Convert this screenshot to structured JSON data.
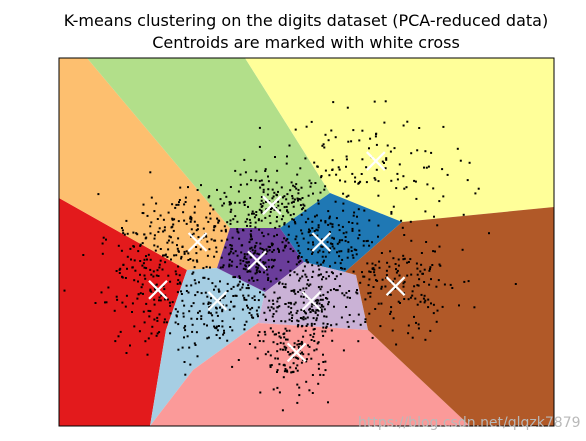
{
  "chart_data": {
    "type": "scatter",
    "title": "K-means clustering on the digits dataset (PCA-reduced data)",
    "subtitle": "Centroids are marked with white cross",
    "xlabel": "",
    "ylabel": "",
    "xticks": [],
    "yticks": [],
    "xlim": [
      0,
      100
    ],
    "ylim": [
      0,
      100
    ],
    "grid": false,
    "legend": "none",
    "centroids": [
      {
        "x": 20,
        "y": 37,
        "region_color": "#e31a1c"
      },
      {
        "x": 28,
        "y": 50,
        "region_color": "#fdbf6f"
      },
      {
        "x": 43,
        "y": 60,
        "region_color": "#b2df8a"
      },
      {
        "x": 32,
        "y": 34,
        "region_color": "#a6cee3"
      },
      {
        "x": 40,
        "y": 45,
        "region_color": "#6a3d9a"
      },
      {
        "x": 53,
        "y": 50,
        "region_color": "#1f78b4"
      },
      {
        "x": 51,
        "y": 34,
        "region_color": "#cab2d6"
      },
      {
        "x": 48,
        "y": 20,
        "region_color": "#fb9a99"
      },
      {
        "x": 68,
        "y": 38,
        "region_color": "#b15928"
      },
      {
        "x": 64,
        "y": 72,
        "region_color": "#ffff99"
      }
    ],
    "point_clusters": [
      {
        "cx": 19,
        "cy": 38,
        "sx": 5.5,
        "sy": 9,
        "n": 170
      },
      {
        "cx": 27,
        "cy": 54,
        "sx": 7,
        "sy": 5.5,
        "n": 160
      },
      {
        "cx": 43,
        "cy": 61,
        "sx": 6,
        "sy": 5,
        "n": 160
      },
      {
        "cx": 32,
        "cy": 32,
        "sx": 5.5,
        "sy": 6,
        "n": 170
      },
      {
        "cx": 40,
        "cy": 45,
        "sx": 4,
        "sy": 4,
        "n": 140
      },
      {
        "cx": 54,
        "cy": 50,
        "sx": 5,
        "sy": 5,
        "n": 130
      },
      {
        "cx": 51,
        "cy": 34,
        "sx": 5,
        "sy": 5,
        "n": 140
      },
      {
        "cx": 48,
        "cy": 21,
        "sx": 3.5,
        "sy": 6,
        "n": 170
      },
      {
        "cx": 69,
        "cy": 38,
        "sx": 6.5,
        "sy": 7,
        "n": 170
      },
      {
        "cx": 63,
        "cy": 69,
        "sx": 10,
        "sy": 8,
        "n": 130
      }
    ]
  },
  "watermark": "https://blog.csdn.net/qlqzk7879"
}
